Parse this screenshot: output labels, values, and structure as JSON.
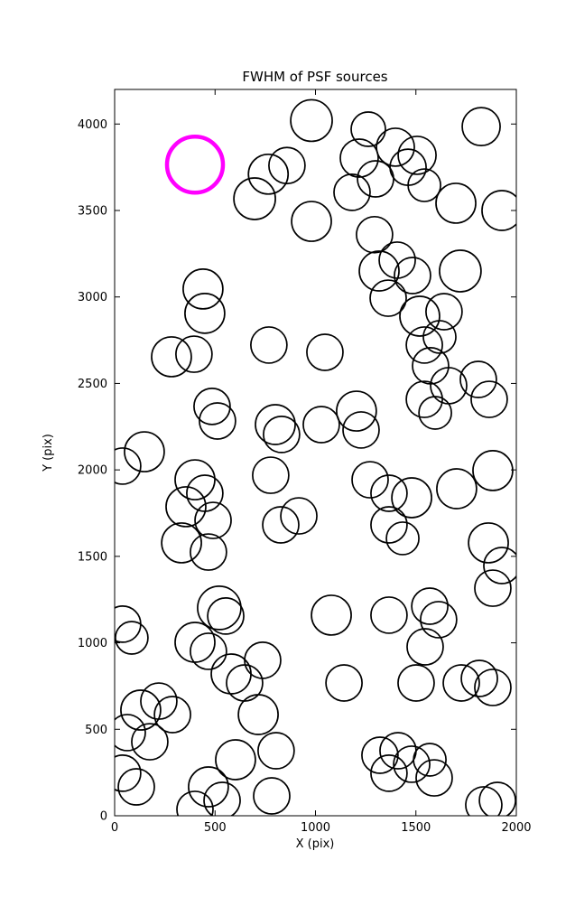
{
  "chart_data": {
    "type": "scatter",
    "title": "FWHM of PSF sources",
    "xlabel": "X (pix)",
    "ylabel": "Y (pix)",
    "xlim": [
      0,
      2000
    ],
    "ylim": [
      0,
      4200
    ],
    "x_ticks": [
      0,
      500,
      1000,
      1500,
      2000
    ],
    "y_ticks": [
      0,
      500,
      1000,
      1500,
      2000,
      2500,
      3000,
      3500,
      4000
    ],
    "grid": false,
    "legend": "none",
    "marker_style": {
      "fill": "none",
      "edge_color": "#000000",
      "edge_width": 1.7
    },
    "point_format": [
      "x_pix",
      "y_pix",
      "marker_radius_px"
    ],
    "highlight": {
      "x": 400,
      "y": 3765,
      "r": 31,
      "color": "#FF00FF",
      "edge_width": 4.5
    },
    "points": [
      [
        980,
        4020,
        23
      ],
      [
        1263,
        3970,
        19
      ],
      [
        1825,
        3985,
        21
      ],
      [
        765,
        3710,
        22
      ],
      [
        858,
        3760,
        20
      ],
      [
        1218,
        3803,
        21
      ],
      [
        1398,
        3866,
        21
      ],
      [
        1506,
        3819,
        21
      ],
      [
        1461,
        3750,
        20
      ],
      [
        1299,
        3683,
        20
      ],
      [
        1182,
        3605,
        20
      ],
      [
        697,
        3568,
        23
      ],
      [
        980,
        3437,
        22
      ],
      [
        1699,
        3542,
        22
      ],
      [
        1928,
        3500,
        22
      ],
      [
        1294,
        3360,
        20
      ],
      [
        1542,
        3646,
        18
      ],
      [
        1317,
        3150,
        22
      ],
      [
        1407,
        3213,
        20
      ],
      [
        1483,
        3124,
        20
      ],
      [
        1721,
        3150,
        23
      ],
      [
        1362,
        2993,
        20
      ],
      [
        1519,
        2889,
        22
      ],
      [
        1640,
        2915,
        20
      ],
      [
        440,
        3046,
        22
      ],
      [
        449,
        2905,
        22
      ],
      [
        283,
        2654,
        22
      ],
      [
        395,
        2669,
        20
      ],
      [
        768,
        2722,
        20
      ],
      [
        1047,
        2680,
        20
      ],
      [
        1542,
        2722,
        20
      ],
      [
        1618,
        2769,
        18
      ],
      [
        1573,
        2602,
        20
      ],
      [
        1663,
        2487,
        20
      ],
      [
        1811,
        2523,
        20
      ],
      [
        1865,
        2408,
        20
      ],
      [
        1542,
        2408,
        20
      ],
      [
        1596,
        2330,
        18
      ],
      [
        485,
        2367,
        20
      ],
      [
        512,
        2283,
        20
      ],
      [
        800,
        2262,
        22
      ],
      [
        831,
        2205,
        20
      ],
      [
        1029,
        2262,
        20
      ],
      [
        1204,
        2340,
        22
      ],
      [
        1227,
        2231,
        20
      ],
      [
        148,
        2105,
        22
      ],
      [
        40,
        2022,
        20
      ],
      [
        777,
        1969,
        20
      ],
      [
        400,
        1943,
        22
      ],
      [
        449,
        1865,
        20
      ],
      [
        1272,
        1943,
        20
      ],
      [
        1366,
        1865,
        20
      ],
      [
        1479,
        1839,
        22
      ],
      [
        1703,
        1891,
        22
      ],
      [
        1883,
        1996,
        22
      ],
      [
        355,
        1787,
        22
      ],
      [
        490,
        1708,
        20
      ],
      [
        827,
        1682,
        20
      ],
      [
        917,
        1734,
        20
      ],
      [
        1366,
        1682,
        20
      ],
      [
        1434,
        1604,
        18
      ],
      [
        333,
        1578,
        22
      ],
      [
        467,
        1525,
        20
      ],
      [
        1861,
        1578,
        22
      ],
      [
        1928,
        1447,
        20
      ],
      [
        1883,
        1316,
        20
      ],
      [
        521,
        1202,
        24
      ],
      [
        553,
        1155,
        20
      ],
      [
        1079,
        1160,
        22
      ],
      [
        1366,
        1160,
        20
      ],
      [
        1569,
        1212,
        20
      ],
      [
        1613,
        1134,
        20
      ],
      [
        40,
        1108,
        20
      ],
      [
        85,
        1029,
        18
      ],
      [
        400,
        1003,
        22
      ],
      [
        467,
        951,
        20
      ],
      [
        1546,
        977,
        20
      ],
      [
        737,
        899,
        20
      ],
      [
        580,
        820,
        22
      ],
      [
        647,
        768,
        20
      ],
      [
        1142,
        768,
        20
      ],
      [
        1501,
        768,
        20
      ],
      [
        1726,
        768,
        20
      ],
      [
        1816,
        794,
        20
      ],
      [
        1883,
        742,
        20
      ],
      [
        130,
        611,
        22
      ],
      [
        220,
        663,
        20
      ],
      [
        288,
        585,
        20
      ],
      [
        715,
        585,
        22
      ],
      [
        63,
        481,
        20
      ],
      [
        175,
        428,
        20
      ],
      [
        804,
        376,
        20
      ],
      [
        602,
        324,
        22
      ],
      [
        1321,
        350,
        20
      ],
      [
        1411,
        376,
        20
      ],
      [
        1479,
        298,
        20
      ],
      [
        1569,
        324,
        18
      ],
      [
        1366,
        246,
        20
      ],
      [
        1591,
        219,
        20
      ],
      [
        40,
        246,
        20
      ],
      [
        108,
        167,
        20
      ],
      [
        467,
        167,
        22
      ],
      [
        535,
        89,
        20
      ],
      [
        782,
        115,
        20
      ],
      [
        400,
        37,
        20
      ],
      [
        1838,
        63,
        20
      ],
      [
        1906,
        89,
        20
      ]
    ]
  }
}
